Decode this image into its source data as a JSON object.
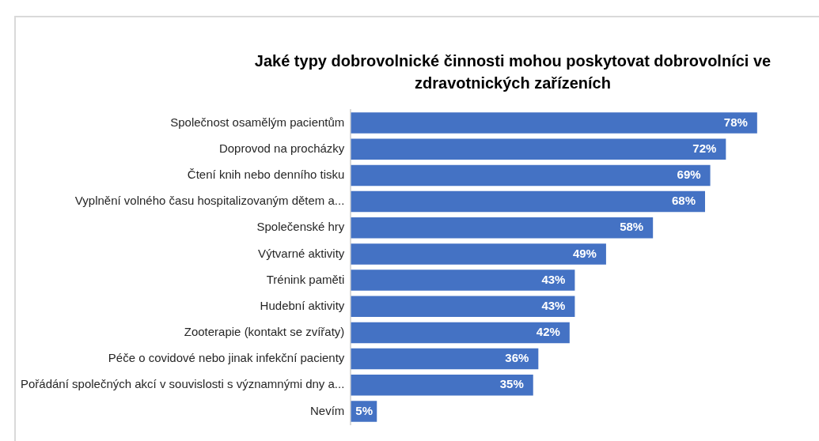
{
  "chart_data": {
    "type": "bar",
    "orientation": "horizontal",
    "title": "Jaké typy dobrovolnické činnosti mohou poskytovat dobrovolníci ve zdravotnických zařízeních",
    "categories": [
      "Společnost osamělým pacientům",
      "Doprovod na procházky",
      "Čtení knih nebo denního tisku",
      "Vyplnění volného času hospitalizovaným dětem a...",
      "Společenské hry",
      "Výtvarné aktivity",
      "Trénink paměti",
      "Hudební aktivity",
      "Zooterapie (kontakt se zvířaty)",
      "Péče o covidové nebo jinak infekční pacienty",
      "Pořádání společných akcí v souvislosti s významnými dny a...",
      "Nevím"
    ],
    "values": [
      78,
      72,
      69,
      68,
      58,
      49,
      43,
      43,
      42,
      36,
      35,
      5
    ],
    "value_labels": [
      "78%",
      "72%",
      "69%",
      "68%",
      "58%",
      "49%",
      "43%",
      "43%",
      "42%",
      "36%",
      "35%",
      "5%"
    ],
    "color": "#4472c4",
    "grid": false,
    "legend": false
  }
}
